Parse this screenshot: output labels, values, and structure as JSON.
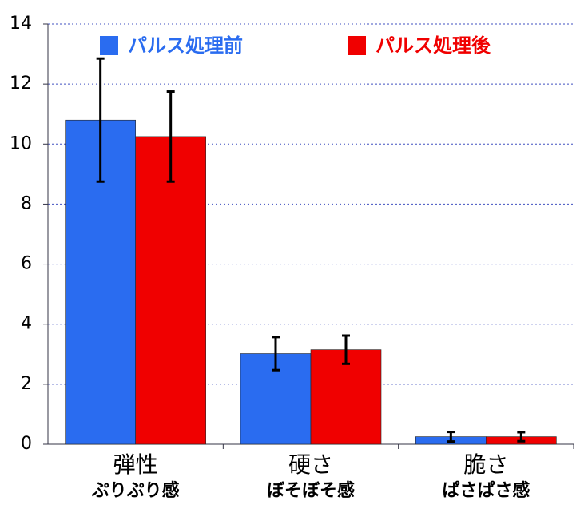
{
  "chart_data": {
    "type": "bar",
    "categories": [
      "弾性",
      "硬さ",
      "脆さ"
    ],
    "category_sublabels": [
      "ぷりぷり感",
      "ぼそぼそ感",
      "ぱさぱさ感"
    ],
    "series": [
      {
        "name": "パルス処理前",
        "color": "#2a6cf0",
        "values": [
          10.8,
          3.02,
          0.25
        ],
        "errors": [
          2.05,
          0.55,
          0.16
        ]
      },
      {
        "name": "パルス処理後",
        "color": "#f00000",
        "values": [
          10.25,
          3.15,
          0.25
        ],
        "errors": [
          1.5,
          0.47,
          0.15
        ]
      }
    ],
    "ylim": [
      0,
      14
    ],
    "yticks": [
      0,
      2,
      4,
      6,
      8,
      10,
      12,
      14
    ],
    "grid": true
  }
}
